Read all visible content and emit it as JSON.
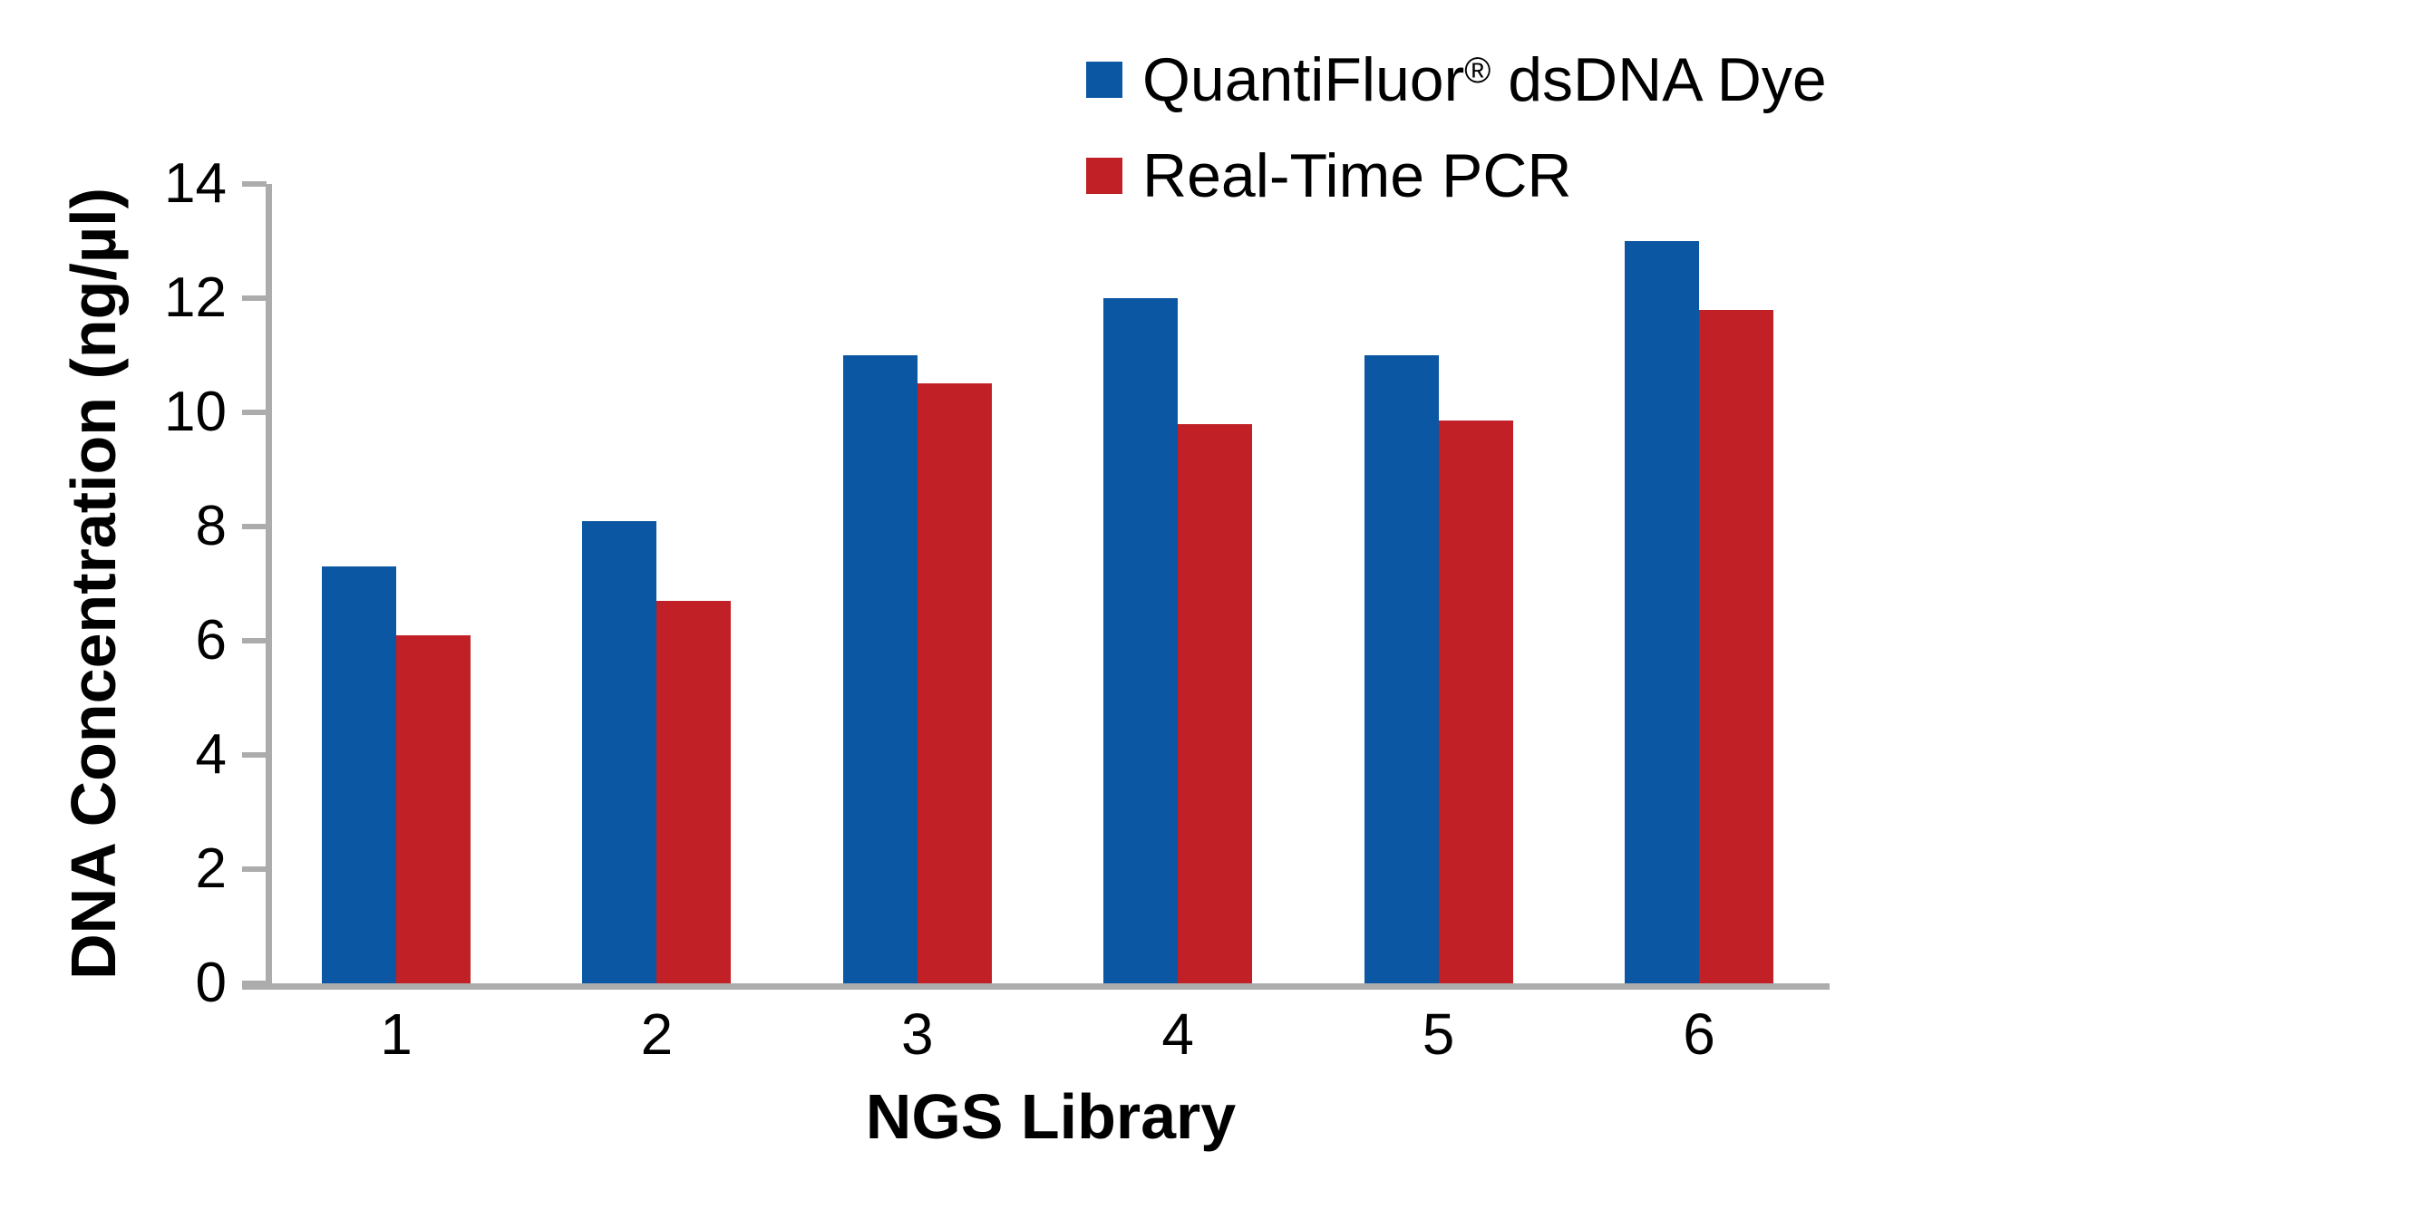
{
  "chart_data": {
    "type": "bar",
    "title": "",
    "categories": [
      "1",
      "2",
      "3",
      "4",
      "5",
      "6"
    ],
    "series": [
      {
        "name": "QuantiFluor® dsDNA Dye",
        "color": "#0B57A3",
        "values": [
          7.3,
          8.1,
          11.0,
          12.0,
          11.0,
          13.0
        ]
      },
      {
        "name": "Real-Time PCR",
        "color": "#C02026",
        "values": [
          6.1,
          6.7,
          10.5,
          9.8,
          9.85,
          11.8
        ]
      }
    ],
    "xlabel": "NGS Library",
    "ylabel": "DNA Concentration (ng/µl)",
    "ylim": [
      0,
      14
    ],
    "yticks": [
      0,
      2,
      4,
      6,
      8,
      10,
      12,
      14
    ],
    "grid": false,
    "legend_position": "top-right",
    "bar_gap_within_pair": 0
  },
  "colors": {
    "axis": "#ACACAC",
    "text": "#000000",
    "background": "#FFFFFF"
  }
}
